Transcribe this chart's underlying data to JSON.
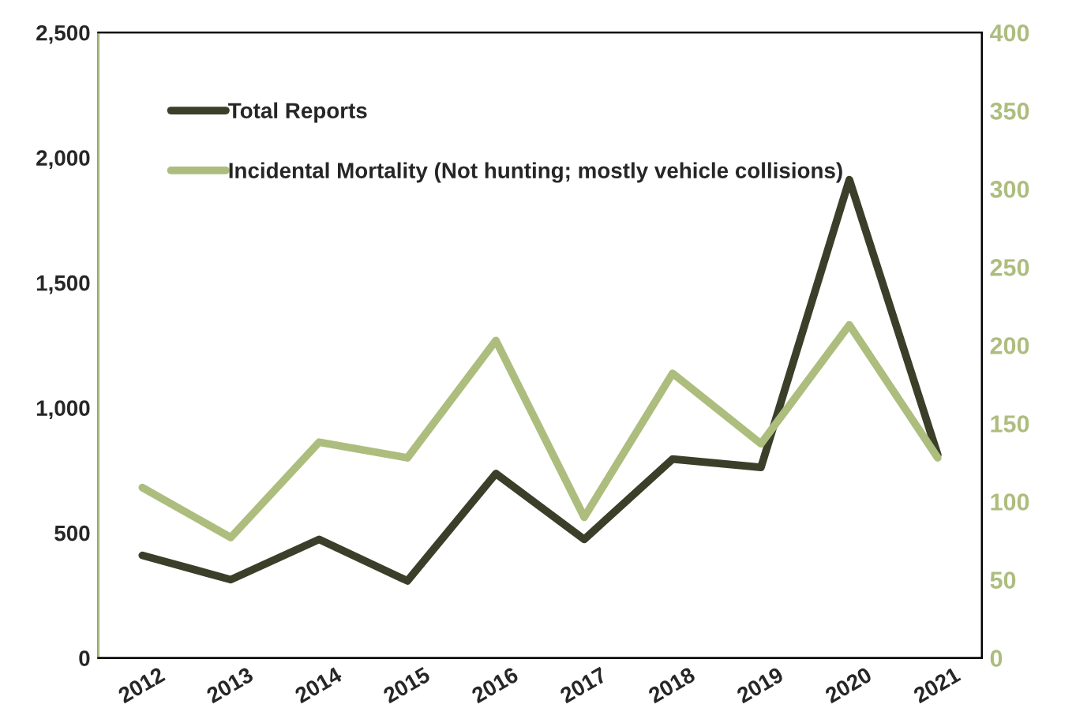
{
  "chart_data": {
    "type": "line",
    "categories": [
      "2012",
      "2013",
      "2014",
      "2015",
      "2016",
      "2017",
      "2018",
      "2019",
      "2020",
      "2021"
    ],
    "series": [
      {
        "name": "Total Reports",
        "color": "#3b3f2a",
        "values": [
          410,
          313,
          474,
          308,
          737,
          474,
          795,
          762,
          1912,
          812
        ]
      },
      {
        "name": "Incidental Mortality (Not hunting; mostly vehicle collisions)",
        "color": "#adbd7e",
        "axis": "y2",
        "values": [
          109,
          77,
          138,
          128,
          203,
          90,
          182,
          137,
          213,
          128
        ]
      }
    ],
    "ylim": [
      0,
      2500
    ],
    "yticks": [
      {
        "value": 0,
        "label": "0"
      },
      {
        "value": 500,
        "label": "500"
      },
      {
        "value": 1000,
        "label": "1,000"
      },
      {
        "value": 1500,
        "label": "1,500"
      },
      {
        "value": 2000,
        "label": "2,000"
      },
      {
        "value": 2500,
        "label": "2,500"
      }
    ],
    "y2lim": [
      0,
      400
    ],
    "y2ticks": [
      0,
      50,
      100,
      150,
      200,
      250,
      300,
      350,
      400
    ],
    "grid": false,
    "legend": "top left",
    "marker": "none",
    "line_style": "solid"
  }
}
